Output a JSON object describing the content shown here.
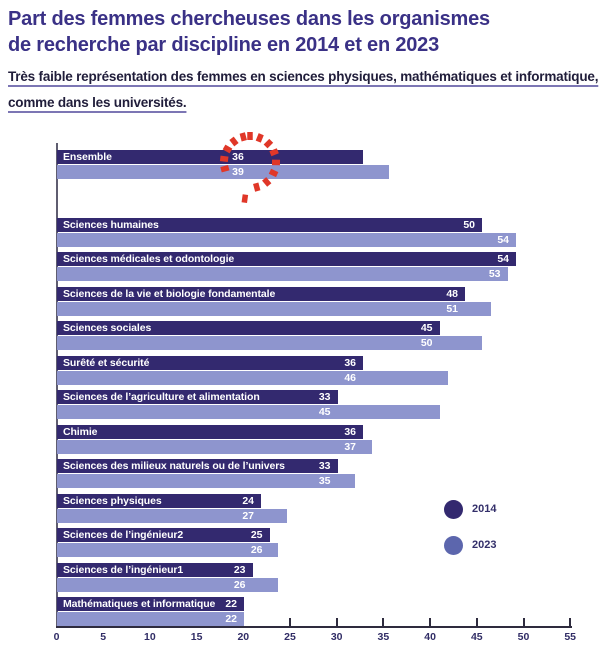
{
  "header": {
    "title_line1": "Part des femmes chercheuses dans les organismes",
    "title_line2": "de recherche par discipline en 2014 et en 2023",
    "title_color": "#3a3186",
    "subtitle_line1": "Très faible représentation des femmes en sciences physiques, mathématiques et informatique,",
    "subtitle_line2": "comme dans les universités."
  },
  "chart_data": {
    "type": "bar",
    "orientation": "horizontal",
    "title": "Part des femmes chercheuses dans les organismes de recherche par discipline en 2014 et en 2023",
    "categories": [
      "Ensemble",
      "Sciences humaines",
      "Sciences médicales et odontologie",
      "Sciences de la vie et biologie fondamentale",
      "Sciences sociales",
      "Surêté et sécurité",
      "Sciences de l’agriculture et alimentation",
      "Chimie",
      "Sciences des milieux naturels ou de l’univers",
      "Sciences physiques",
      "Sciences de l’ingénieur2",
      "Sciences de l’ingénieur1",
      "Mathématiques et informatique"
    ],
    "series": [
      {
        "name": "2014",
        "color": "#33296f",
        "values": [
          36,
          50,
          54,
          48,
          45,
          36,
          33,
          36,
          33,
          24,
          25,
          23,
          22
        ]
      },
      {
        "name": "2023",
        "color": "#8e95ce",
        "values": [
          39,
          54,
          53,
          51,
          50,
          46,
          45,
          37,
          35,
          27,
          26,
          26,
          22
        ]
      }
    ],
    "xlim": [
      0,
      55
    ],
    "xticks": [
      0,
      5,
      10,
      15,
      20,
      25,
      30,
      35,
      40,
      45,
      50,
      55
    ],
    "grid": "off",
    "value_labels": "white, inside bars",
    "legend": {
      "position": "right-middle",
      "entries": [
        {
          "label": "2014",
          "color": "#33296f"
        },
        {
          "label": "2023",
          "color": "#5c66ad"
        }
      ]
    },
    "annotation": {
      "type": "hand-drawn-dashed-circle",
      "target": "Ensemble values 36 / 39",
      "color": "#e03728"
    },
    "layout_hints": {
      "label_2023_at_own_end_rows": [
        1,
        2
      ],
      "highlighted_row": 0
    }
  }
}
